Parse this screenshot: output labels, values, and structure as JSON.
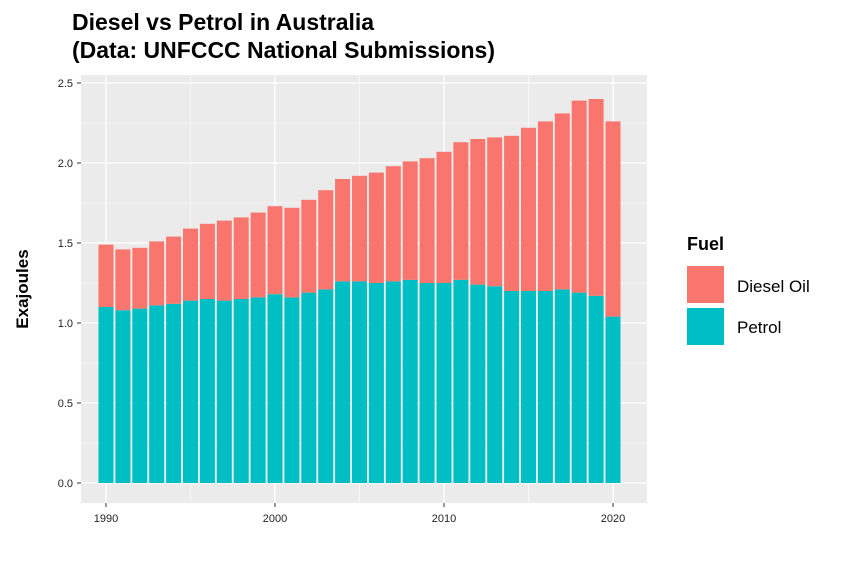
{
  "title_line1": "Diesel vs Petrol in Australia",
  "title_line2": "(Data: UNFCCC National Submissions)",
  "chart_data": {
    "type": "bar",
    "stacked": true,
    "ylabel": "Exajoules",
    "xlabel": "",
    "ylim": [
      0,
      2.5
    ],
    "yticks": [
      "0.0",
      "0.5",
      "1.0",
      "1.5",
      "2.0",
      "2.5"
    ],
    "xticks": [
      "1990",
      "2000",
      "2010",
      "2020"
    ],
    "x": [
      1990,
      1991,
      1992,
      1993,
      1994,
      1995,
      1996,
      1997,
      1998,
      1999,
      2000,
      2001,
      2002,
      2003,
      2004,
      2005,
      2006,
      2007,
      2008,
      2009,
      2010,
      2011,
      2012,
      2013,
      2014,
      2015,
      2016,
      2017,
      2018,
      2019,
      2020
    ],
    "series": [
      {
        "name": "Petrol",
        "color": "#00BFC4",
        "values": [
          1.1,
          1.08,
          1.09,
          1.11,
          1.12,
          1.14,
          1.15,
          1.14,
          1.15,
          1.16,
          1.18,
          1.16,
          1.19,
          1.21,
          1.26,
          1.26,
          1.25,
          1.26,
          1.27,
          1.25,
          1.25,
          1.27,
          1.24,
          1.23,
          1.2,
          1.2,
          1.2,
          1.21,
          1.19,
          1.17,
          1.04
        ]
      },
      {
        "name": "Diesel Oil",
        "color": "#F8766D",
        "values": [
          0.39,
          0.38,
          0.38,
          0.4,
          0.42,
          0.45,
          0.47,
          0.5,
          0.51,
          0.53,
          0.55,
          0.56,
          0.58,
          0.62,
          0.64,
          0.66,
          0.69,
          0.72,
          0.74,
          0.78,
          0.82,
          0.86,
          0.91,
          0.93,
          0.97,
          1.02,
          1.06,
          1.1,
          1.2,
          1.23,
          1.22
        ]
      }
    ],
    "legend": {
      "title": "Fuel",
      "position": "right",
      "entries": [
        {
          "label": "Diesel Oil",
          "color": "#F8766D"
        },
        {
          "label": "Petrol",
          "color": "#00BFC4"
        }
      ]
    },
    "grid": true,
    "panel_background": "#EBEBEB"
  }
}
